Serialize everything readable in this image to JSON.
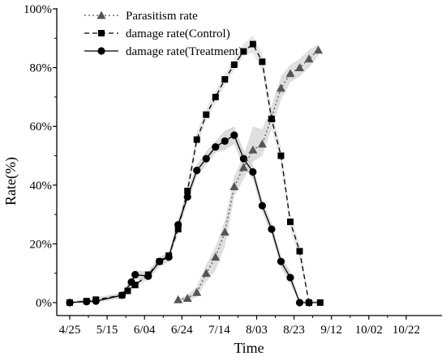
{
  "chart_data": {
    "type": "line",
    "xlabel": "Time",
    "ylabel": "Rate(%)",
    "x_ticks": [
      {
        "label": "4/25",
        "day": 0
      },
      {
        "label": "5/15",
        "day": 20
      },
      {
        "label": "6/04",
        "day": 40
      },
      {
        "label": "6/24",
        "day": 60
      },
      {
        "label": "7/14",
        "day": 80
      },
      {
        "label": "8/03",
        "day": 100
      },
      {
        "label": "8/23",
        "day": 120
      },
      {
        "label": "9/12",
        "day": 140
      },
      {
        "label": "10/02",
        "day": 160
      },
      {
        "label": "10/22",
        "day": 180
      }
    ],
    "y_ticks": [
      {
        "label": "0%",
        "value": 0
      },
      {
        "label": "20%",
        "value": 20
      },
      {
        "label": "40%",
        "value": 40
      },
      {
        "label": "60%",
        "value": 60
      },
      {
        "label": "80%",
        "value": 80
      },
      {
        "label": "100%",
        "value": 100
      }
    ],
    "xlim": [
      0,
      184
    ],
    "ylim": [
      0,
      100
    ],
    "legend_position": "top-left",
    "series": [
      {
        "name": "Parasitism rate",
        "marker": "triangle",
        "line_style": "dash-dot-dot",
        "color": "#555555",
        "band_color": "#d9d9d9",
        "points": [
          [
            58,
            1
          ],
          [
            63,
            1.5
          ],
          [
            68,
            3.5
          ],
          [
            73,
            10
          ],
          [
            78,
            15.5
          ],
          [
            83,
            24
          ],
          [
            88,
            39.5
          ],
          [
            93,
            46
          ],
          [
            98,
            52
          ],
          [
            103,
            54
          ],
          [
            108,
            63
          ],
          [
            113,
            73
          ],
          [
            118,
            78
          ],
          [
            123,
            80
          ],
          [
            128,
            83
          ],
          [
            133,
            86
          ]
        ],
        "band": [
          [
            58,
            0.5,
            1.5
          ],
          [
            63,
            0.5,
            2.5
          ],
          [
            68,
            2,
            5.5
          ],
          [
            73,
            7,
            13
          ],
          [
            78,
            11,
            19
          ],
          [
            83,
            19,
            28
          ],
          [
            88,
            36,
            43
          ],
          [
            93,
            42,
            50
          ],
          [
            98,
            48,
            60
          ],
          [
            103,
            50,
            59
          ],
          [
            108,
            59,
            67
          ],
          [
            113,
            69,
            77
          ],
          [
            118,
            75,
            81
          ],
          [
            123,
            77,
            83
          ],
          [
            128,
            80,
            86
          ],
          [
            133,
            84,
            88
          ]
        ]
      },
      {
        "name": "damage rate(Control)",
        "marker": "square",
        "line_style": "dashed",
        "color": "#000000",
        "band_color": "#e3e3e3",
        "points": [
          [
            0,
            0
          ],
          [
            9,
            0.5
          ],
          [
            14,
            1
          ],
          [
            28,
            2.5
          ],
          [
            31,
            4
          ],
          [
            35,
            6
          ],
          [
            42,
            9.5
          ],
          [
            48,
            14
          ],
          [
            53,
            16
          ],
          [
            58,
            25
          ],
          [
            63,
            38
          ],
          [
            68,
            55.5
          ],
          [
            73,
            64
          ],
          [
            78,
            70
          ],
          [
            83,
            76
          ],
          [
            88,
            81
          ],
          [
            93,
            85.5
          ],
          [
            98,
            88
          ],
          [
            103,
            82
          ],
          [
            108,
            62.5
          ],
          [
            113,
            50
          ],
          [
            118,
            27.5
          ],
          [
            123,
            17.5
          ],
          [
            128,
            0
          ],
          [
            134,
            0
          ]
        ],
        "band": [
          [
            0,
            0,
            0.5
          ],
          [
            9,
            0,
            1.2
          ],
          [
            14,
            0.3,
            1.8
          ],
          [
            28,
            1.5,
            3.5
          ],
          [
            31,
            3,
            5
          ],
          [
            35,
            5,
            7
          ],
          [
            42,
            8,
            11
          ],
          [
            48,
            12.5,
            15.5
          ],
          [
            53,
            14.5,
            17.5
          ],
          [
            58,
            23,
            27
          ],
          [
            63,
            35,
            41
          ],
          [
            68,
            53,
            58
          ],
          [
            73,
            62,
            66
          ],
          [
            78,
            68,
            72
          ],
          [
            83,
            74,
            78
          ],
          [
            88,
            79,
            83
          ],
          [
            93,
            84,
            88
          ],
          [
            98,
            85,
            91
          ],
          [
            103,
            79,
            85
          ],
          [
            108,
            59.5,
            65.5
          ],
          [
            113,
            47,
            53
          ],
          [
            118,
            25,
            30
          ],
          [
            123,
            15,
            20
          ],
          [
            128,
            0,
            1
          ],
          [
            134,
            0,
            0.5
          ]
        ]
      },
      {
        "name": "damage rate(Treatment)",
        "marker": "circle",
        "line_style": "solid",
        "color": "#000000",
        "band_color": "#d4d4d4",
        "points": [
          [
            0,
            0
          ],
          [
            9,
            0.3
          ],
          [
            14,
            0.5
          ],
          [
            28,
            2.5
          ],
          [
            33,
            7
          ],
          [
            35,
            9.5
          ],
          [
            42,
            9
          ],
          [
            48,
            14
          ],
          [
            53,
            15.5
          ],
          [
            58,
            26.5
          ],
          [
            63,
            36
          ],
          [
            68,
            45
          ],
          [
            73,
            49
          ],
          [
            78,
            53
          ],
          [
            83,
            55
          ],
          [
            88,
            57
          ],
          [
            93,
            49
          ],
          [
            98,
            44.5
          ],
          [
            103,
            33
          ],
          [
            108,
            25
          ],
          [
            113,
            14
          ],
          [
            118,
            8.5
          ],
          [
            123,
            0
          ],
          [
            128,
            0
          ]
        ],
        "band": [
          [
            0,
            0,
            0.5
          ],
          [
            9,
            0,
            1
          ],
          [
            14,
            0,
            1.2
          ],
          [
            28,
            1.5,
            3.5
          ],
          [
            33,
            5.5,
            8.5
          ],
          [
            35,
            8,
            11
          ],
          [
            42,
            7.5,
            10.5
          ],
          [
            48,
            12.5,
            15.5
          ],
          [
            53,
            14,
            17
          ],
          [
            58,
            24.5,
            28.5
          ],
          [
            63,
            34,
            38
          ],
          [
            68,
            43,
            47
          ],
          [
            73,
            47,
            51.5
          ],
          [
            78,
            51,
            55
          ],
          [
            83,
            52,
            58.5
          ],
          [
            88,
            54,
            60
          ],
          [
            93,
            46,
            52
          ],
          [
            98,
            42,
            47
          ],
          [
            103,
            31,
            35
          ],
          [
            108,
            23,
            27
          ],
          [
            113,
            12,
            16
          ],
          [
            118,
            6.5,
            10.5
          ],
          [
            123,
            0,
            1
          ],
          [
            128,
            0,
            0.5
          ]
        ]
      }
    ]
  }
}
